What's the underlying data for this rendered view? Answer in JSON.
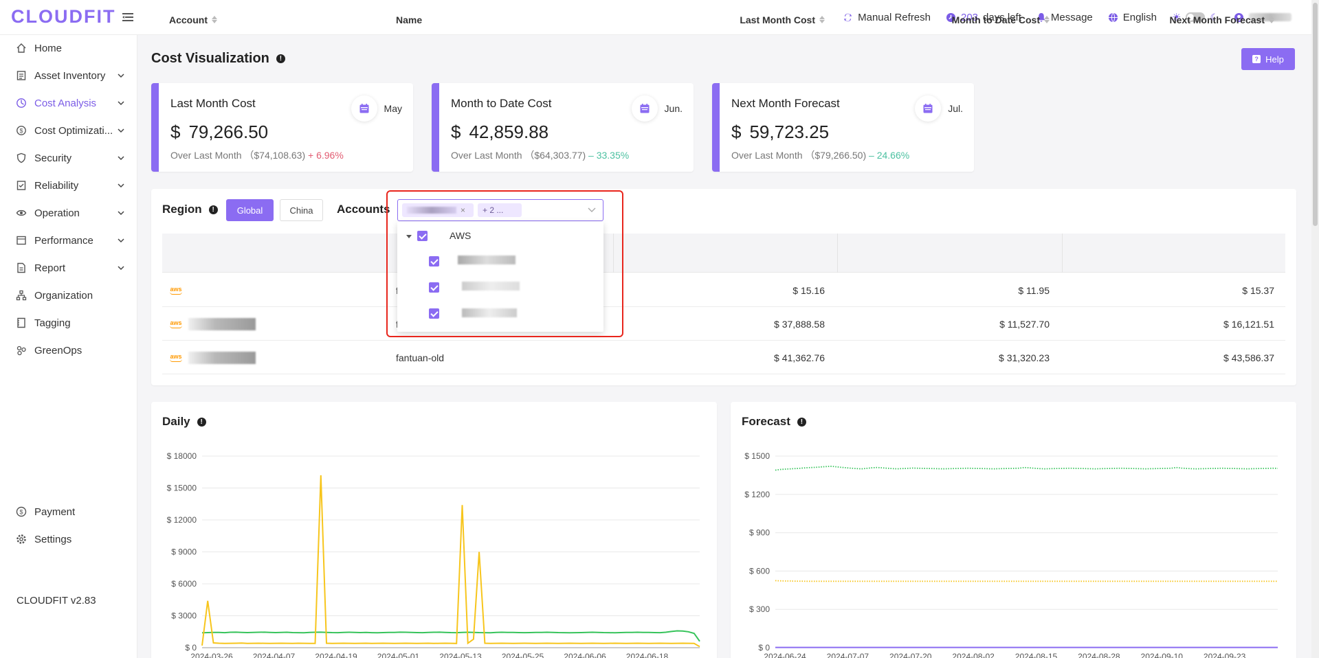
{
  "topbar": {
    "logo": "CLOUDFIT",
    "refresh": "Manual Refresh",
    "days_left_num": "203",
    "days_left_text": "days left",
    "message": "Message",
    "language": "English"
  },
  "sidebar": {
    "items": [
      {
        "label": "Home",
        "icon": "home-icon"
      },
      {
        "label": "Asset Inventory",
        "icon": "inventory-icon",
        "expandable": true
      },
      {
        "label": "Cost Analysis",
        "icon": "cost-analysis-icon",
        "expandable": true,
        "active": true
      },
      {
        "label": "Cost Optimizati...",
        "icon": "cost-optimization-icon",
        "expandable": true
      },
      {
        "label": "Security",
        "icon": "security-icon",
        "expandable": true
      },
      {
        "label": "Reliability",
        "icon": "reliability-icon",
        "expandable": true
      },
      {
        "label": "Operation",
        "icon": "operation-icon",
        "expandable": true
      },
      {
        "label": "Performance",
        "icon": "performance-icon",
        "expandable": true
      },
      {
        "label": "Report",
        "icon": "report-icon",
        "expandable": true
      },
      {
        "label": "Organization",
        "icon": "organization-icon"
      },
      {
        "label": "Tagging",
        "icon": "tagging-icon"
      },
      {
        "label": "GreenOps",
        "icon": "greenops-icon"
      }
    ],
    "payment": "Payment",
    "settings": "Settings",
    "version": "CLOUDFIT v2.83"
  },
  "page": {
    "title": "Cost Visualization",
    "help": "Help"
  },
  "cards": [
    {
      "title": "Last Month Cost",
      "month": "May",
      "amount": "79,266.50",
      "sub_label": "Over Last Month",
      "prev": "（$74,108.63)",
      "change": "+ 6.96%",
      "trend": "up"
    },
    {
      "title": "Month to Date Cost",
      "month": "Jun.",
      "amount": "42,859.88",
      "sub_label": "Over Last Month",
      "prev": "（$64,303.77)",
      "change": "– 33.35%",
      "trend": "down"
    },
    {
      "title": "Next Month Forecast",
      "month": "Jul.",
      "amount": "59,723.25",
      "sub_label": "Over Last Month",
      "prev": "（$79,266.50)",
      "change": "– 24.66%",
      "trend": "down"
    }
  ],
  "filters": {
    "region_label": "Region",
    "global": "Global",
    "china": "China",
    "accounts_label": "Accounts",
    "selected_tag_more": "+ 2 ...",
    "dropdown": {
      "group": "AWS",
      "options": [
        "fantuan-pay",
        "fantuan",
        "fantuan-old"
      ]
    }
  },
  "table": {
    "headers": {
      "account": "Account",
      "name": "Name",
      "last_month": "Last Month Cost",
      "mtd": "Month to Date Cost",
      "forecast": "Next Month Forecast"
    },
    "rows": [
      {
        "name": "f",
        "last_month": "$ 15.16",
        "mtd": "$ 11.95",
        "forecast": "$ 15.37"
      },
      {
        "name": "f",
        "last_month": "$ 37,888.58",
        "mtd": "$ 11,527.70",
        "forecast": "$ 16,121.51"
      },
      {
        "name": "fantuan-old",
        "last_month": "$ 41,362.76",
        "mtd": "$ 31,320.23",
        "forecast": "$ 43,586.37"
      }
    ]
  },
  "colors": {
    "accent": "#8b6cf2",
    "up": "#e25c72",
    "down": "#4cc1a1",
    "series_green": "#36c35a",
    "series_yellow": "#f7c51c",
    "series_purple": "#8b6cf2"
  },
  "chart_data": [
    {
      "type": "line",
      "title": "Daily",
      "ylim": [
        0,
        18000
      ],
      "yticks": [
        0,
        3000,
        6000,
        9000,
        12000,
        15000,
        18000
      ],
      "ytick_labels": [
        "$ 0",
        "$ 3000",
        "$ 6000",
        "$ 9000",
        "$ 12000",
        "$ 15000",
        "$ 18000"
      ],
      "xtick_labels": [
        "2024-03-26",
        "2024-04-07",
        "2024-04-19",
        "2024-05-01",
        "2024-05-13",
        "2024-05-25",
        "2024-06-06",
        "2024-06-18"
      ],
      "x_count": 89,
      "series": [
        {
          "color": "#36c35a",
          "values": [
            1400,
            1420,
            1440,
            1430,
            1410,
            1450,
            1460,
            1440,
            1420,
            1430,
            1450,
            1460,
            1440,
            1420,
            1430,
            1450,
            1420,
            1410,
            1400,
            1430,
            1450,
            1460,
            1440,
            1420,
            1410,
            1430,
            1450,
            1440,
            1420,
            1430,
            1410,
            1400,
            1420,
            1430,
            1440,
            1460,
            1450,
            1430,
            1420,
            1410,
            1430,
            1450,
            1460,
            1440,
            1420,
            1410,
            1430,
            1450,
            1440,
            1420,
            1410,
            1400,
            1430,
            1450,
            1440,
            1430,
            1420,
            1410,
            1420,
            1430,
            1440,
            1450,
            1440,
            1420,
            1410,
            1400,
            1410,
            1420,
            1430,
            1450,
            1440,
            1420,
            1410,
            1400,
            1420,
            1430,
            1440,
            1450,
            1440,
            1430,
            1420,
            1410,
            1450,
            1520,
            1580,
            1560,
            1500,
            1350,
            600
          ]
        },
        {
          "color": "#f7c51c",
          "values": [
            200,
            4400,
            450,
            420,
            400,
            410,
            420,
            430,
            400,
            410,
            420,
            410,
            400,
            410,
            420,
            410,
            400,
            420,
            410,
            400,
            400,
            16200,
            420,
            400,
            410,
            420,
            410,
            400,
            410,
            420,
            400,
            410,
            420,
            410,
            400,
            410,
            420,
            410,
            400,
            410,
            420,
            400,
            410,
            420,
            410,
            400,
            13400,
            420,
            800,
            9000,
            420,
            400,
            410,
            420,
            410,
            400,
            410,
            420,
            410,
            400,
            410,
            420,
            410,
            400,
            410,
            420,
            410,
            400,
            410,
            420,
            410,
            400,
            410,
            420,
            410,
            400,
            410,
            420,
            410,
            400,
            410,
            420,
            410,
            400,
            410,
            420,
            410,
            400,
            100
          ]
        }
      ]
    },
    {
      "type": "line",
      "title": "Forecast",
      "ylim": [
        0,
        1500
      ],
      "yticks": [
        0,
        300,
        600,
        900,
        1200,
        1500
      ],
      "ytick_labels": [
        "$ 0",
        "$ 300",
        "$ 600",
        "$ 900",
        "$ 1200",
        "$ 1500"
      ],
      "xtick_labels": [
        "2024-06-24",
        "2024-07-07",
        "2024-07-20",
        "2024-08-02",
        "2024-08-15",
        "2024-08-28",
        "2024-09-10",
        "2024-09-23"
      ],
      "x_count": 100,
      "series": [
        {
          "color": "#36c35a",
          "style": "dotted",
          "values": [
            1390,
            1395,
            1398,
            1400,
            1402,
            1405,
            1408,
            1410,
            1412,
            1415,
            1418,
            1420,
            1416,
            1412,
            1408,
            1405,
            1402,
            1400,
            1404,
            1408,
            1410,
            1408,
            1405,
            1402,
            1400,
            1402,
            1404,
            1406,
            1405,
            1404,
            1403,
            1402,
            1401,
            1400,
            1401,
            1402,
            1403,
            1404,
            1405,
            1404,
            1403,
            1402,
            1401,
            1400,
            1401,
            1402,
            1403,
            1404,
            1405,
            1410,
            1408,
            1405,
            1402,
            1400,
            1401,
            1402,
            1403,
            1404,
            1405,
            1404,
            1403,
            1402,
            1401,
            1400,
            1401,
            1402,
            1403,
            1404,
            1405,
            1404,
            1403,
            1402,
            1401,
            1400,
            1401,
            1402,
            1403,
            1404,
            1405,
            1410,
            1406,
            1403,
            1401,
            1400,
            1401,
            1402,
            1403,
            1404,
            1405,
            1404,
            1403,
            1402,
            1401,
            1400,
            1401,
            1402,
            1403,
            1404,
            1405,
            1404
          ]
        },
        {
          "color": "#f7c51c",
          "style": "dotted",
          "values": [
            525,
            523,
            522,
            522,
            521,
            521,
            520,
            520,
            520,
            520,
            520,
            520,
            520,
            520,
            520,
            520,
            520,
            520,
            520,
            520,
            520,
            520,
            520,
            520,
            520,
            520,
            520,
            520,
            520,
            520,
            520,
            520,
            520,
            520,
            520,
            520,
            520,
            520,
            520,
            520,
            520,
            520,
            520,
            520,
            520,
            520,
            520,
            520,
            520,
            520,
            520,
            520,
            520,
            520,
            520,
            520,
            520,
            520,
            520,
            520,
            520,
            520,
            520,
            520,
            520,
            520,
            520,
            520,
            520,
            520,
            520,
            520,
            520,
            520,
            520,
            520,
            520,
            520,
            520,
            520,
            520,
            520,
            520,
            520,
            520,
            520,
            520,
            520,
            520,
            520,
            520,
            520,
            520,
            520,
            520,
            520,
            520,
            520,
            520,
            520
          ]
        },
        {
          "color": "#8b6cf2",
          "style": "solid",
          "values": [
            2,
            2,
            2,
            2,
            2,
            2,
            2,
            2,
            2,
            2,
            2,
            2,
            2,
            2,
            2,
            2,
            2,
            2,
            2,
            2,
            2,
            2,
            2,
            2,
            2,
            2,
            2,
            2,
            2,
            2,
            2,
            2,
            2,
            2,
            2,
            2,
            2,
            2,
            2,
            2,
            2,
            2,
            2,
            2,
            2,
            2,
            2,
            2,
            2,
            2,
            2,
            2,
            2,
            2,
            2,
            2,
            2,
            2,
            2,
            2,
            2,
            2,
            2,
            2,
            2,
            2,
            2,
            2,
            2,
            2,
            2,
            2,
            2,
            2,
            2,
            2,
            2,
            2,
            2,
            2,
            2,
            2,
            2,
            2,
            2,
            2,
            2,
            2,
            2,
            2,
            2,
            2,
            2,
            2,
            2,
            2,
            2,
            2,
            2,
            2
          ]
        }
      ]
    }
  ]
}
